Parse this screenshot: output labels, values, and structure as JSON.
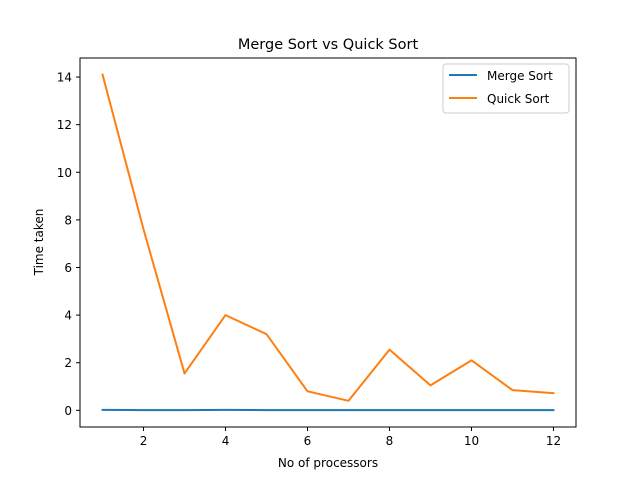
{
  "chart_data": {
    "type": "line",
    "title": "Merge Sort vs Quick Sort",
    "xlabel": "No of processors",
    "ylabel": "Time taken",
    "x": [
      1,
      2,
      3,
      4,
      5,
      6,
      7,
      8,
      9,
      10,
      11,
      12
    ],
    "xlim": [
      0.45,
      12.55
    ],
    "ylim": [
      -0.7,
      14.8
    ],
    "xticks": [
      2,
      4,
      6,
      8,
      10,
      12
    ],
    "yticks": [
      0,
      2,
      4,
      6,
      8,
      10,
      12,
      14
    ],
    "grid": false,
    "legend_position": "upper right",
    "series": [
      {
        "name": "Merge Sort",
        "color": "#1f77b4",
        "values": [
          0.02,
          0.01,
          0.01,
          0.02,
          0.01,
          0.01,
          0.01,
          0.01,
          0.01,
          0.01,
          0.01,
          0.01
        ]
      },
      {
        "name": "Quick Sort",
        "color": "#ff7f0e",
        "values": [
          14.1,
          7.6,
          1.55,
          4.0,
          3.2,
          0.8,
          0.4,
          2.55,
          1.05,
          2.1,
          0.85,
          0.72
        ]
      }
    ]
  }
}
